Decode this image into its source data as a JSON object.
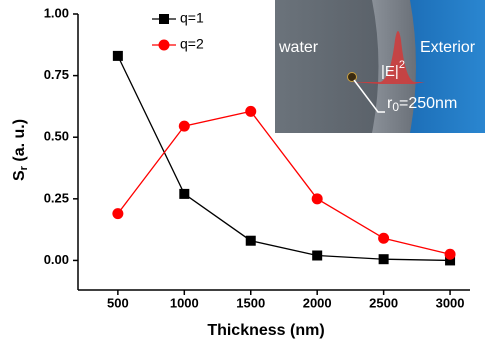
{
  "chart_data": {
    "type": "line",
    "xlabel": "Thickness (nm)",
    "ylabel": {
      "main": "S",
      "sub": "r",
      "rest": " (a. u.)"
    },
    "x": [
      500,
      1000,
      1500,
      2000,
      2500,
      3000
    ],
    "series": [
      {
        "name": "q=1",
        "color": "#000000",
        "marker": "square",
        "values": [
          0.83,
          0.27,
          0.08,
          0.02,
          0.005,
          0.0
        ]
      },
      {
        "name": "q=2",
        "color": "#ff0000",
        "marker": "circle",
        "values": [
          0.19,
          0.545,
          0.605,
          0.25,
          0.09,
          0.025
        ]
      }
    ],
    "xlim": [
      200,
      3150
    ],
    "xticks": [
      500,
      1000,
      1500,
      2000,
      2500,
      3000
    ],
    "ylim": [
      -0.12,
      1.0
    ],
    "yticks": [
      {
        "value": 0,
        "label": "0.00"
      },
      {
        "value": 0.25,
        "label": "0.25"
      },
      {
        "value": 0.5,
        "label": "0.50"
      },
      {
        "value": 0.75,
        "label": "0.75"
      },
      {
        "value": 1.0,
        "label": "1.00"
      }
    ],
    "legend": "upper-left",
    "inset": {
      "left": "water",
      "right": "Exterior",
      "field": "|E|",
      "field_power": "2",
      "radius": {
        "main": "r",
        "sub": "0",
        "rest": "=250nm"
      }
    }
  }
}
